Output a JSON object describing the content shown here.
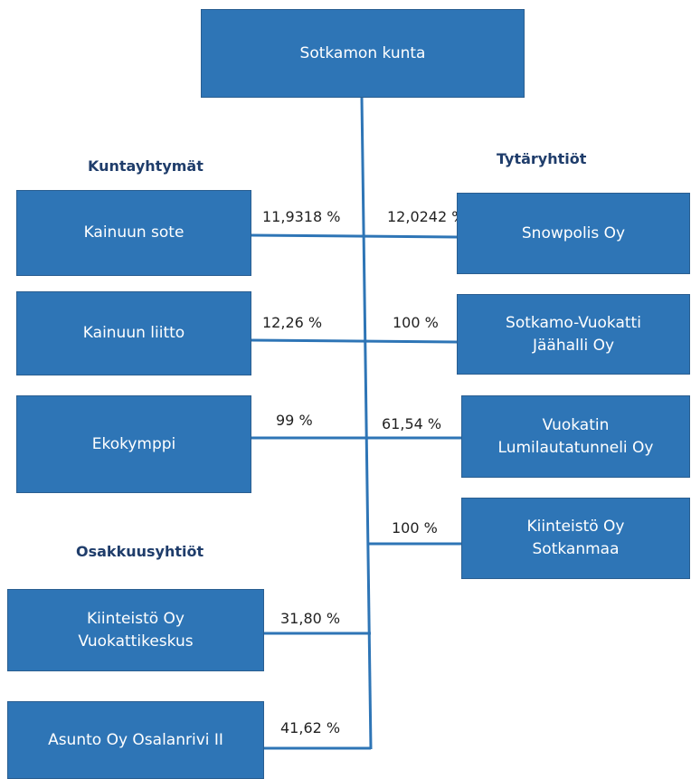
{
  "root": {
    "label": [
      "Sotkamon kunta"
    ]
  },
  "headings": [
    "Kuntayhtymät",
    "Tytäryhtiöt",
    "Osakkuusyhtiöt"
  ],
  "nodes": [
    {
      "label": [
        "Kainuun sote"
      ],
      "share": "11,9318 %"
    },
    {
      "label": [
        "Kainuun liitto"
      ],
      "share": "12,0242 %"
    },
    {
      "label": [
        "Ekokymppi"
      ],
      "share": "12,26 %"
    },
    {
      "label": [
        "Snowpolis Oy"
      ],
      "share": "100 %"
    },
    {
      "label": [
        "Sotkamo-Vuokatti",
        "Jäähalli Oy"
      ],
      "share": "99 %"
    },
    {
      "label": [
        "Vuokatin",
        "Lumilautatunneli Oy"
      ],
      "share": "61,54 %"
    },
    {
      "label": [
        "Kiinteistö Oy",
        "Sotkanmaa"
      ],
      "share": "100 %"
    },
    {
      "label": [
        "Kiinteistö Oy",
        "Vuokattikeskus"
      ],
      "share": "31,80 %"
    },
    {
      "label": [
        "Asunto Oy Osalanrivi II"
      ],
      "share": "41,62 %"
    }
  ]
}
